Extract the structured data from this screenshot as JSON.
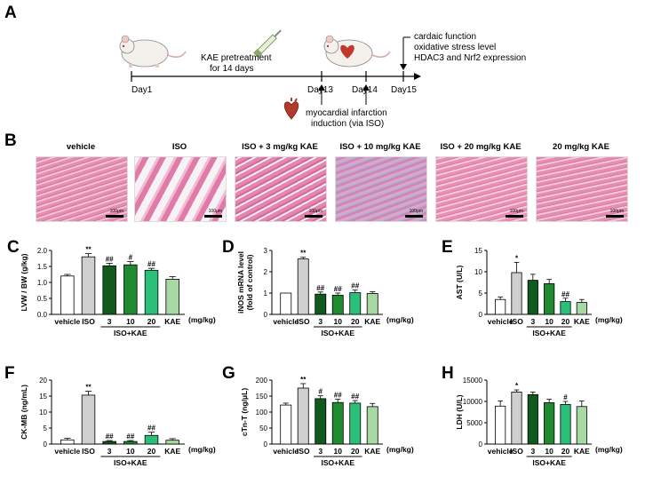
{
  "panels": {
    "A": "A",
    "B": "B",
    "C": "C",
    "D": "D",
    "E": "E",
    "F": "F",
    "G": "G",
    "H": "H"
  },
  "timeline": {
    "day1": "Day1",
    "day13": "Day13",
    "day14": "Day14",
    "day15": "Day15",
    "pretreat_line1": "KAE pretreatment",
    "pretreat_line2": "for 14 days",
    "mi_line1": "myocardial infarction",
    "mi_line2": "induction (via ISO)",
    "outcome1": "cardaic function",
    "outcome2": "oxidative stress level",
    "outcome3": "HDAC3 and Nrf2 expression"
  },
  "histology": {
    "labels": [
      "vehicle",
      "ISO",
      "ISO + 3 mg/kg KAE",
      "ISO + 10 mg/kg KAE",
      "ISO + 20 mg/kg KAE",
      "20 mg/kg KAE"
    ],
    "scale": "100μm"
  },
  "colors": {
    "vehicle": "#ffffff",
    "iso": "#cfcfcf",
    "kae3": "#0f5a1c",
    "kae10": "#1f8a2f",
    "kae20": "#2bbf7a",
    "kae": "#a8d8a4"
  },
  "chart_data": [
    {
      "id": "C",
      "type": "bar",
      "ylabel": "LVW / BW (g/kg)",
      "unit": "(mg/kg)",
      "ylim": [
        0,
        2
      ],
      "yticks": [
        "0.0",
        "0.5",
        "1.0",
        "1.5",
        "2.0"
      ],
      "categories": [
        "vehicle",
        "ISO",
        "3",
        "10",
        "20",
        "KAE"
      ],
      "group_label": "ISO+KAE",
      "values": [
        1.2,
        1.8,
        1.52,
        1.55,
        1.38,
        1.1
      ],
      "errors": [
        0.05,
        0.1,
        0.08,
        0.1,
        0.06,
        0.08
      ],
      "marks": [
        "",
        "**",
        "##",
        "#",
        "##",
        ""
      ]
    },
    {
      "id": "D",
      "type": "bar",
      "ylabel": "iNOS mRNA level",
      "ylabel2": "(fold of control)",
      "unit": "(mg/kg)",
      "ylim": [
        0,
        3
      ],
      "yticks": [
        "0",
        "1",
        "2",
        "3"
      ],
      "categories": [
        "vehicle",
        "ISO",
        "3",
        "10",
        "20",
        "KAE"
      ],
      "group_label": "ISO+KAE",
      "values": [
        1.0,
        2.6,
        0.95,
        0.9,
        1.02,
        0.98
      ],
      "errors": [
        0,
        0.08,
        0.1,
        0.1,
        0.12,
        0.08
      ],
      "marks": [
        "",
        "**",
        "##",
        "##",
        "##",
        ""
      ]
    },
    {
      "id": "E",
      "type": "bar",
      "ylabel": "AST (U/L)",
      "unit": "(mg/kg)",
      "ylim": [
        0,
        15
      ],
      "yticks": [
        "0",
        "5",
        "10",
        "15"
      ],
      "categories": [
        "vehicle",
        "ISO",
        "3",
        "10",
        "20",
        "KAE"
      ],
      "group_label": "ISO+KAE",
      "values": [
        3.5,
        9.8,
        8.0,
        7.2,
        3.0,
        2.8
      ],
      "errors": [
        0.6,
        2.4,
        1.4,
        1.0,
        0.8,
        0.7
      ],
      "marks": [
        "",
        "*",
        "",
        "",
        "##",
        ""
      ]
    },
    {
      "id": "F",
      "type": "bar",
      "ylabel": "CK-MB (ng/mL)",
      "unit": "(mg/kg)",
      "ylim": [
        0,
        20
      ],
      "yticks": [
        "0",
        "5",
        "10",
        "15",
        "20"
      ],
      "categories": [
        "vehicle",
        "ISO",
        "3",
        "10",
        "20",
        "KAE"
      ],
      "group_label": "ISO+KAE",
      "values": [
        1.3,
        15.3,
        0.8,
        0.8,
        2.7,
        1.2
      ],
      "errors": [
        0.5,
        1.2,
        0.3,
        0.3,
        1.0,
        0.5
      ],
      "marks": [
        "",
        "**",
        "##",
        "##",
        "##",
        ""
      ]
    },
    {
      "id": "G",
      "type": "bar",
      "ylabel": "cTn-T (ng/μL)",
      "unit": "(mg/kg)",
      "ylim": [
        0,
        200
      ],
      "yticks": [
        "0",
        "50",
        "100",
        "150",
        "200"
      ],
      "categories": [
        "vehicle",
        "ISO",
        "3",
        "10",
        "20",
        "KAE"
      ],
      "group_label": "ISO+KAE",
      "values": [
        122,
        175,
        142,
        130,
        128,
        117
      ],
      "errors": [
        6,
        14,
        9,
        10,
        8,
        10
      ],
      "marks": [
        "",
        "**",
        "#",
        "##",
        "##",
        ""
      ]
    },
    {
      "id": "H",
      "type": "bar",
      "ylabel": "LDH (U/L)",
      "unit": "(mg/kg)",
      "ylim": [
        0,
        15000
      ],
      "yticks": [
        "0",
        "5000",
        "10000",
        "15000"
      ],
      "categories": [
        "vehicle",
        "ISO",
        "3",
        "10",
        "20",
        "KAE"
      ],
      "group_label": "ISO+KAE",
      "values": [
        8900,
        12200,
        11600,
        9700,
        9300,
        8800
      ],
      "errors": [
        1200,
        500,
        600,
        800,
        700,
        1300
      ],
      "marks": [
        "",
        "*",
        "",
        "",
        "#",
        ""
      ]
    }
  ]
}
